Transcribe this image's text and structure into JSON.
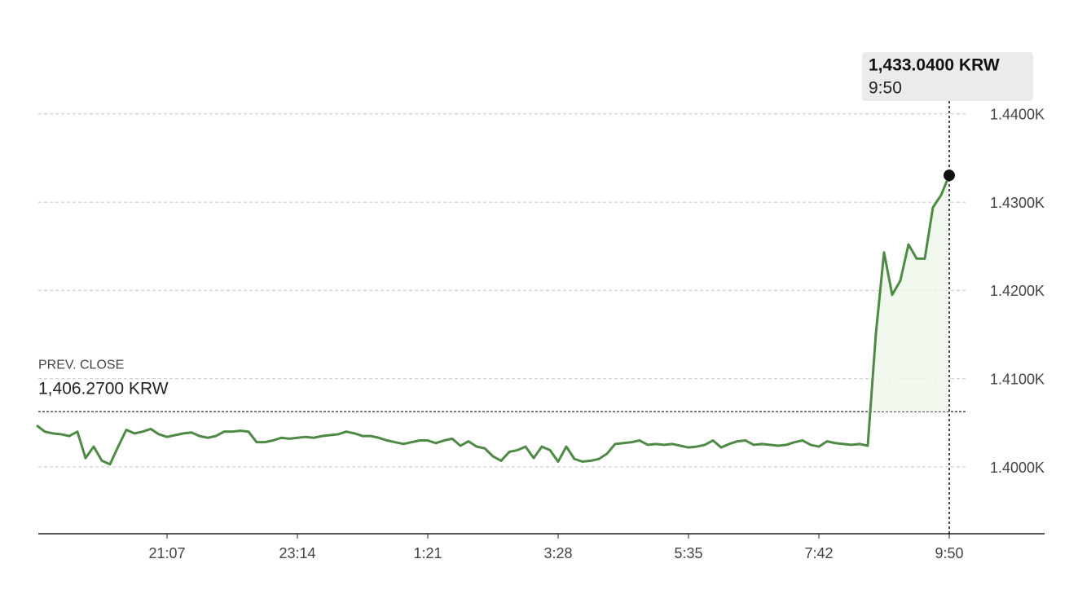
{
  "chart_data": {
    "type": "line",
    "categories": [
      null,
      null,
      null,
      null,
      null,
      null,
      null,
      null,
      null,
      null,
      null,
      null,
      null,
      null,
      null,
      null,
      "21:07",
      null,
      null,
      null,
      null,
      null,
      null,
      null,
      null,
      null,
      null,
      null,
      null,
      null,
      null,
      null,
      "23:14",
      null,
      null,
      null,
      null,
      null,
      null,
      null,
      null,
      null,
      null,
      null,
      null,
      null,
      null,
      null,
      "1:21",
      null,
      null,
      null,
      null,
      null,
      null,
      null,
      null,
      null,
      null,
      null,
      null,
      null,
      null,
      null,
      "3:28",
      null,
      null,
      null,
      null,
      null,
      null,
      null,
      null,
      null,
      null,
      null,
      null,
      null,
      null,
      null,
      "5:35",
      null,
      null,
      null,
      null,
      null,
      null,
      null,
      null,
      null,
      null,
      null,
      null,
      null,
      null,
      null,
      "7:42",
      null,
      null,
      null,
      null,
      null,
      null,
      null,
      null,
      null,
      null,
      null,
      null,
      null,
      null,
      null,
      "9:50"
    ],
    "series": [
      {
        "color": "#4e8a45",
        "values": [
          1404.7,
          1404.0,
          1403.8,
          1403.7,
          1403.5,
          1404.0,
          1401.0,
          1402.3,
          1400.7,
          1400.3,
          1402.3,
          1404.2,
          1403.8,
          1404.0,
          1404.3,
          1403.7,
          1403.4,
          1403.6,
          1403.8,
          1403.9,
          1403.5,
          1403.3,
          1403.5,
          1404.0,
          1404.0,
          1404.1,
          1404.0,
          1402.8,
          1402.8,
          1403.0,
          1403.3,
          1403.2,
          1403.3,
          1403.4,
          1403.3,
          1403.5,
          1403.6,
          1403.7,
          1404.0,
          1403.8,
          1403.5,
          1403.5,
          1403.3,
          1403.0,
          1402.8,
          1402.6,
          1402.8,
          1403.0,
          1403.0,
          1402.7,
          1403.0,
          1403.2,
          1402.4,
          1402.9,
          1402.3,
          1402.1,
          1401.2,
          1400.7,
          1401.7,
          1401.9,
          1402.3,
          1401.0,
          1402.3,
          1401.9,
          1400.6,
          1402.3,
          1400.9,
          1400.6,
          1400.7,
          1400.9,
          1401.5,
          1402.6,
          1402.7,
          1402.8,
          1403.0,
          1402.5,
          1402.6,
          1402.5,
          1402.6,
          1402.4,
          1402.2,
          1402.3,
          1402.5,
          1403.0,
          1402.2,
          1402.6,
          1402.9,
          1403.0,
          1402.5,
          1402.6,
          1402.5,
          1402.4,
          1402.5,
          1402.8,
          1403.0,
          1402.5,
          1402.3,
          1402.9,
          1402.7,
          1402.6,
          1402.5,
          1402.6,
          1402.4,
          1415.1,
          1424.3,
          1419.5,
          1421.1,
          1425.2,
          1423.6,
          1423.6,
          1429.4,
          1430.8,
          1433.04
        ]
      }
    ],
    "ylim": [
      1392.43,
      1446.44
    ],
    "yticks": [
      {
        "value": 1400,
        "label": "1.4000K"
      },
      {
        "value": 1410,
        "label": "1.4100K"
      },
      {
        "value": 1420,
        "label": "1.4200K"
      },
      {
        "value": 1430,
        "label": "1.4300K"
      },
      {
        "value": 1440,
        "label": "1.4400K"
      }
    ],
    "grid": true,
    "prev_close": {
      "label": "PREV. CLOSE",
      "value": 1406.27,
      "value_label": "1,406.2700 KRW"
    },
    "tooltip": {
      "label": "1,433.0400 KRW",
      "time": "9:50"
    }
  }
}
